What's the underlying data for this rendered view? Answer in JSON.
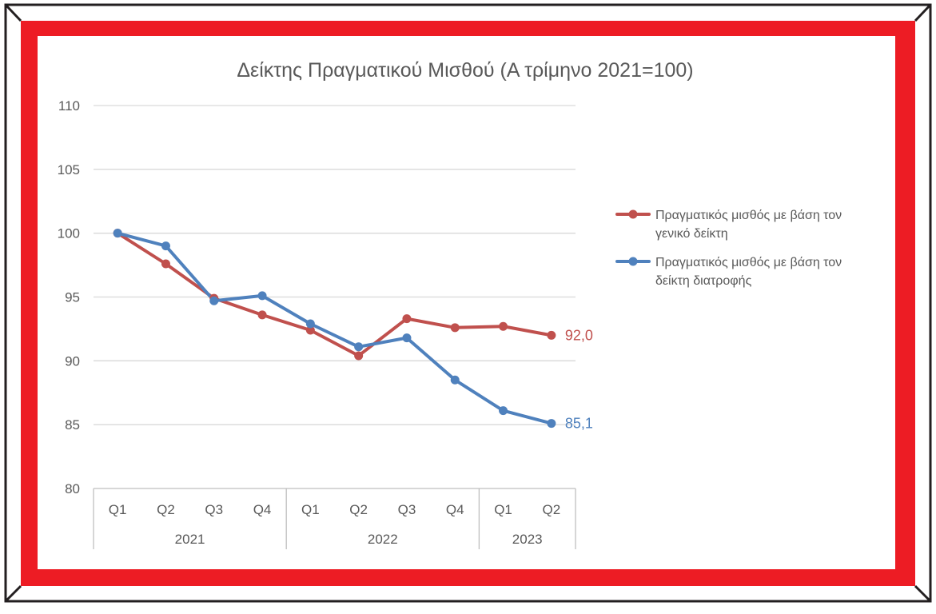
{
  "chart_data": {
    "type": "line",
    "title": "Δείκτης Πραγματικού Μισθού (Α τρίμηνο 2021=100)",
    "categories": [
      "Q1",
      "Q2",
      "Q3",
      "Q4",
      "Q1",
      "Q2",
      "Q3",
      "Q4",
      "Q1",
      "Q2"
    ],
    "year_groups": [
      {
        "label": "2021",
        "count": 4
      },
      {
        "label": "2022",
        "count": 4
      },
      {
        "label": "2023",
        "count": 2
      }
    ],
    "ylim": [
      80,
      110
    ],
    "yticks": [
      "80",
      "85",
      "90",
      "95",
      "100",
      "105",
      "110"
    ],
    "grid": true,
    "legend_position": "right",
    "series": [
      {
        "legend_lines": [
          "Πραγματικός μισθός με βάση τον",
          "γενικό δείκτη"
        ],
        "color": "#c0504d",
        "values": [
          100,
          97.6,
          94.9,
          93.6,
          92.4,
          90.4,
          93.3,
          92.6,
          92.7,
          92.0
        ],
        "end_label": "92,0"
      },
      {
        "legend_lines": [
          "Πραγματικός μισθός με βάση τον",
          "δείκτη διατροφής"
        ],
        "color": "#4f81bd",
        "values": [
          100,
          99.0,
          94.7,
          95.1,
          92.9,
          91.1,
          91.8,
          88.5,
          86.1,
          85.1
        ],
        "end_label": "85,1"
      }
    ]
  },
  "frame": {
    "border_color": "#ed1c24",
    "outline_color": "#231f20"
  }
}
